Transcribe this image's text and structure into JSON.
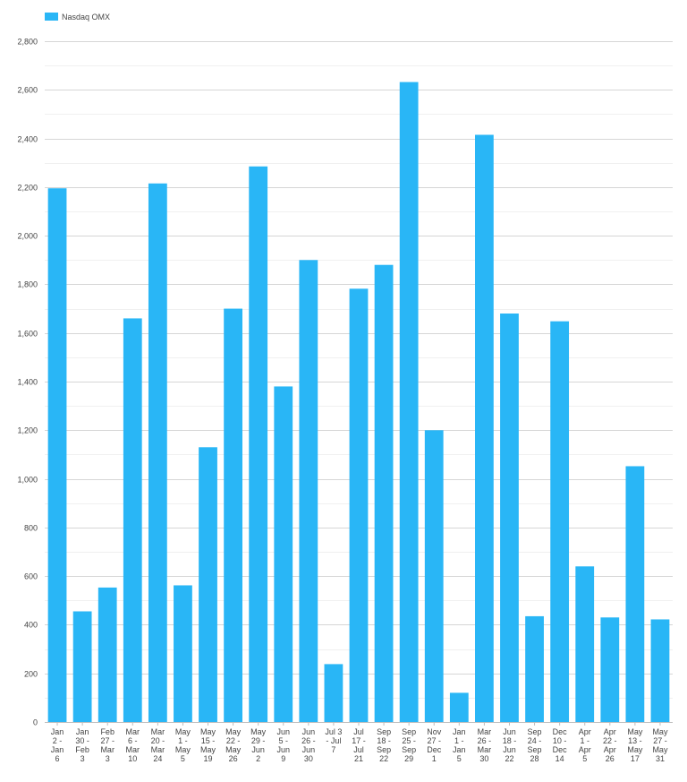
{
  "chart_data": {
    "type": "bar",
    "categories": [
      "Jan 2 - Jan 6",
      "Jan 30 - Feb 3",
      "Feb 27 - Mar 3",
      "Mar 6 - Mar 10",
      "Mar 20 - Mar 24",
      "May 1 - May 5",
      "May 15 - May 19",
      "May 22 - May 26",
      "May 29 - Jun 2",
      "Jun 5 - Jun 9",
      "Jun 26 - Jun 30",
      "Jul 3 - Jul 7",
      "Jul 17 - Jul 21",
      "Sep 18 - Sep 22",
      "Sep 25 - Sep 29",
      "Nov 27 - Dec 1",
      "Jan 1 - Jan 5",
      "Mar 26 - Mar 30",
      "Jun 18 - Jun 22",
      "Sep 24 - Sep 28",
      "Dec 10 - Dec 14",
      "Apr 1 - Apr 5",
      "Apr 22 - Apr 26",
      "May 13 - May 17",
      "May 27 - May 31"
    ],
    "category_lines": [
      [
        "Jan",
        "2 -",
        "Jan",
        "6"
      ],
      [
        "Jan",
        "30 -",
        "Feb",
        "3"
      ],
      [
        "Feb",
        "27 -",
        "Mar",
        "3"
      ],
      [
        "Mar",
        "6 -",
        "Mar",
        "10"
      ],
      [
        "Mar",
        "20 -",
        "Mar",
        "24"
      ],
      [
        "May",
        "1 -",
        "May",
        "5"
      ],
      [
        "May",
        "15 -",
        "May",
        "19"
      ],
      [
        "May",
        "22 -",
        "May",
        "26"
      ],
      [
        "May",
        "29 -",
        "Jun",
        "2"
      ],
      [
        "Jun",
        "5 -",
        "Jun",
        "9"
      ],
      [
        "Jun",
        "26 -",
        "Jun",
        "30"
      ],
      [
        "Jul 3",
        "- Jul",
        "7"
      ],
      [
        "Jul",
        "17 -",
        "Jul",
        "21"
      ],
      [
        "Sep",
        "18 -",
        "Sep",
        "22"
      ],
      [
        "Sep",
        "25 -",
        "Sep",
        "29"
      ],
      [
        "Nov",
        "27 -",
        "Dec",
        "1"
      ],
      [
        "Jan",
        "1 -",
        "Jan",
        "5"
      ],
      [
        "Mar",
        "26 -",
        "Mar",
        "30"
      ],
      [
        "Jun",
        "18 -",
        "Jun",
        "22"
      ],
      [
        "Sep",
        "24 -",
        "Sep",
        "28"
      ],
      [
        "Dec",
        "10 -",
        "Dec",
        "14"
      ],
      [
        "Apr",
        "1 -",
        "Apr",
        "5"
      ],
      [
        "Apr",
        "22 -",
        "Apr",
        "26"
      ],
      [
        "May",
        "13 -",
        "May",
        "17"
      ],
      [
        "May",
        "27 -",
        "May",
        "31"
      ]
    ],
    "series": [
      {
        "name": "Nasdaq OMX",
        "color": "#29b6f6",
        "values": [
          2195,
          455,
          553,
          1660,
          2215,
          562,
          1130,
          1700,
          2285,
          1380,
          1900,
          238,
          1782,
          1880,
          2632,
          1200,
          120,
          2415,
          1680,
          435,
          1648,
          640,
          430,
          1052,
          422
        ]
      }
    ],
    "title": "",
    "xlabel": "",
    "ylabel": "",
    "ylim": [
      0,
      2800
    ],
    "yticks": [
      0,
      200,
      400,
      600,
      800,
      1000,
      1200,
      1400,
      1600,
      1800,
      2000,
      2200,
      2400,
      2600,
      2800
    ],
    "ytick_labels": [
      "0",
      "200",
      "400",
      "600",
      "800",
      "1,000",
      "1,200",
      "1,400",
      "1,600",
      "1,800",
      "2,000",
      "2,200",
      "2,400",
      "2,600",
      "2,800"
    ],
    "grid": true,
    "legend": "top-left"
  }
}
